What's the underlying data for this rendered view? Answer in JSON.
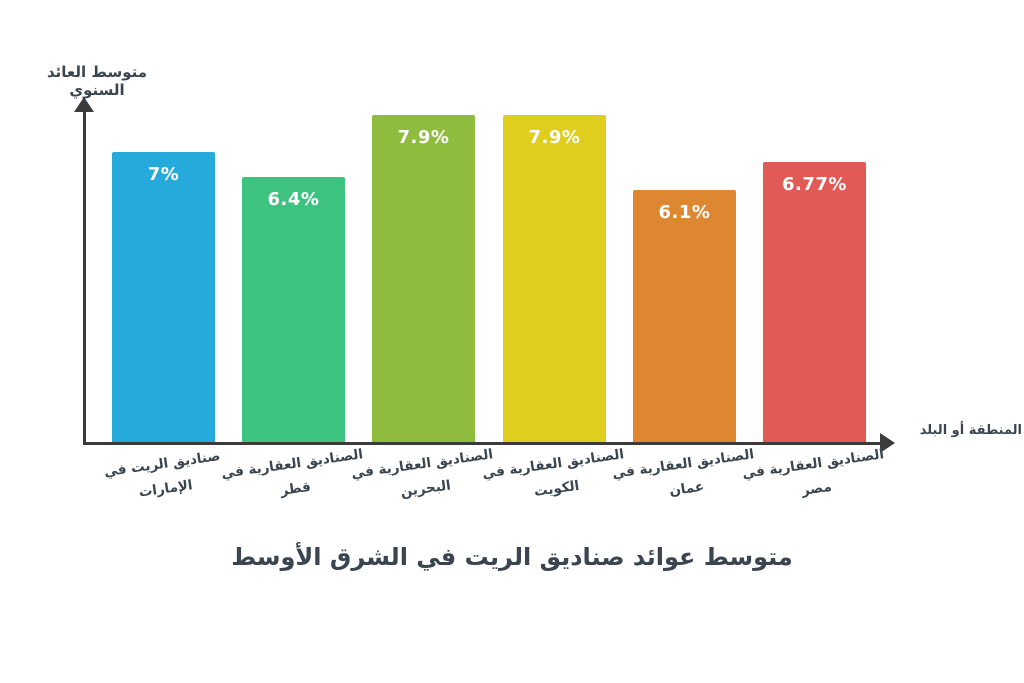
{
  "chart_data": {
    "type": "bar",
    "title": "متوسط عوائد صناديق الريت في الشرق الأوسط",
    "ylabel": "متوسط العائد السنوي",
    "xlabel": "المنطقة أو البلد",
    "categories": [
      "صناديق الريت في الإمارات",
      "الصناديق العقارية في قطر",
      "الصناديق العقارية في البحرين",
      "الصناديق العقارية في الكويت",
      "الصناديق العقارية في عمان",
      "الصناديق العقارية في مصر"
    ],
    "values": [
      7,
      6.4,
      7.9,
      7.9,
      6.1,
      6.77
    ],
    "value_labels": [
      "7%",
      "6.4%",
      "7.9%",
      "7.9%",
      "6.1%",
      "6.77%"
    ],
    "bar_colors": [
      "#26A9DB",
      "#3DC37F",
      "#90BC3E",
      "#DFCE1E",
      "#DD8830",
      "#E25A56"
    ],
    "axis_color": "#3B3B3B",
    "text_color": "#3A4550",
    "value_text_color": "#FFFFFF",
    "ylim": [
      0,
      8.2
    ],
    "grid": false,
    "legend": false
  }
}
